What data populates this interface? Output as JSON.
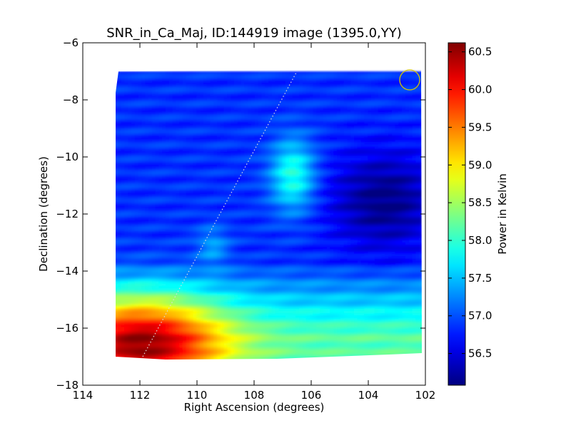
{
  "chart_data": {
    "type": "heatmap",
    "title": "SNR_in_Ca_Maj, ID:144919 image (1395.0,YY)",
    "xlabel": "Right Ascension (degrees)",
    "ylabel": "Declination (degrees)",
    "xlim": [
      114,
      102
    ],
    "ylim": [
      -18,
      -6
    ],
    "x_ticks": [
      114,
      112,
      110,
      108,
      106,
      104,
      102
    ],
    "y_ticks": [
      -6,
      -8,
      -10,
      -12,
      -14,
      -16,
      -18
    ],
    "colorbar": {
      "label": "Power in Kelvin",
      "range": [
        56.08,
        60.62
      ],
      "ticks": [
        "56.5",
        "57.0",
        "57.5",
        "58.0",
        "58.5",
        "59.0",
        "59.5",
        "60.0",
        "60.5"
      ]
    },
    "map_extent": {
      "ra": [
        112.9,
        102.2
      ],
      "dec": [
        -17.1,
        -7.0
      ]
    },
    "features": [
      {
        "name": "hot_region_southeast",
        "ra": 112.0,
        "dec": -16.5,
        "kelvin": 60.3
      },
      {
        "name": "green_blob",
        "ra": 106.7,
        "dec": -10.6,
        "kelvin": 58.0
      },
      {
        "name": "faint_blob",
        "ra": 109.5,
        "dec": -13.1,
        "kelvin": 57.4
      },
      {
        "name": "cold_region_east",
        "ra": 103.5,
        "dec": -11.5,
        "kelvin": 56.1
      }
    ],
    "dotted_line": {
      "ra": [
        111.9,
        106.5
      ],
      "dec": [
        -17.0,
        -7.0
      ]
    },
    "marker_circle": {
      "ra": 102.55,
      "dec": -7.3,
      "radius_deg": 0.35
    }
  },
  "colors": {
    "circle": "#d4c400",
    "dotted_line": "#dddddd",
    "axis": "#000000"
  }
}
